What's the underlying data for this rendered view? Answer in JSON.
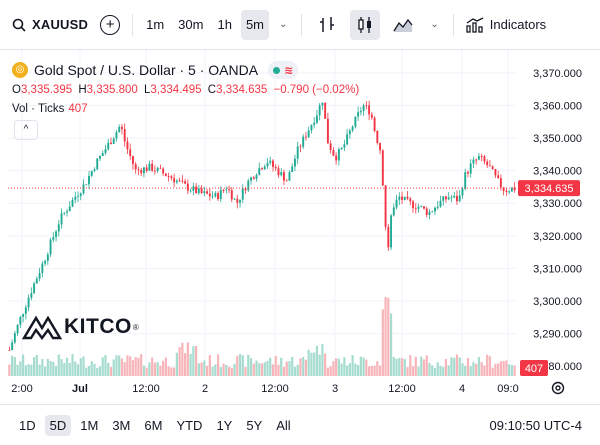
{
  "toolbar": {
    "symbol": "XAUUSD",
    "intervals": [
      "1m",
      "30m",
      "1h",
      "5m"
    ],
    "active_interval": "5m",
    "indicators_label": "Indicators"
  },
  "legend": {
    "title": "Gold Spot / U.S. Dollar · 5 · OANDA",
    "coin_label": "◎",
    "status_icon": "≋",
    "open_k": "O",
    "open": "3,335.395",
    "high_k": "H",
    "high": "3,335.800",
    "low_k": "L",
    "low": "3,334.495",
    "close_k": "C",
    "close": "3,334.635",
    "change": "−0.790 (−0.02%)",
    "volume_label": "Vol · Ticks",
    "volume_value": "407",
    "collapse_icon": "^"
  },
  "colors": {
    "up": "#22ab94",
    "down": "#f23645",
    "vol_up": "#a6dccf",
    "vol_down": "#f7b4b9",
    "grid": "#f0f3fa",
    "price_line": "#f23645"
  },
  "chart_data": {
    "type": "candlestick",
    "title": "Gold Spot / U.S. Dollar · 5 · OANDA",
    "ylim": [
      3277,
      3377
    ],
    "y_ticks": [
      3370,
      3360,
      3350,
      3340,
      3330,
      3320,
      3310,
      3300,
      3290,
      3280
    ],
    "y_tick_labels": [
      "3,370.000",
      "3,360.000",
      "3,350.000",
      "3,340.000",
      "3,330.000",
      "3,320.000",
      "3,310.000",
      "3,300.000",
      "3,290.000",
      "3,280.000"
    ],
    "x_tick_labels": [
      "2:00",
      "Jul",
      "12:00",
      "2",
      "12:00",
      "3",
      "12:00",
      "4",
      "09:0"
    ],
    "last_price": 3334.635,
    "last_price_label": "3,334.635",
    "last_volume_label": "407",
    "price_path": [
      [
        0.0,
        3285
      ],
      [
        0.02,
        3294
      ],
      [
        0.04,
        3302
      ],
      [
        0.07,
        3313
      ],
      [
        0.1,
        3325
      ],
      [
        0.13,
        3332
      ],
      [
        0.15,
        3336
      ],
      [
        0.17,
        3342
      ],
      [
        0.2,
        3349
      ],
      [
        0.22,
        3354
      ],
      [
        0.23,
        3348
      ],
      [
        0.25,
        3340
      ],
      [
        0.28,
        3341
      ],
      [
        0.32,
        3338
      ],
      [
        0.35,
        3335
      ],
      [
        0.38,
        3333
      ],
      [
        0.41,
        3332
      ],
      [
        0.43,
        3335
      ],
      [
        0.45,
        3330
      ],
      [
        0.47,
        3336
      ],
      [
        0.49,
        3340
      ],
      [
        0.51,
        3343
      ],
      [
        0.53,
        3340
      ],
      [
        0.55,
        3337
      ],
      [
        0.57,
        3346
      ],
      [
        0.59,
        3352
      ],
      [
        0.61,
        3358
      ],
      [
        0.62,
        3362
      ],
      [
        0.63,
        3349
      ],
      [
        0.645,
        3344
      ],
      [
        0.66,
        3347
      ],
      [
        0.68,
        3354
      ],
      [
        0.7,
        3360
      ],
      [
        0.715,
        3358
      ],
      [
        0.725,
        3351
      ],
      [
        0.735,
        3346
      ],
      [
        0.742,
        3330
      ],
      [
        0.748,
        3313
      ],
      [
        0.755,
        3326
      ],
      [
        0.77,
        3332
      ],
      [
        0.79,
        3330
      ],
      [
        0.81,
        3329
      ],
      [
        0.83,
        3327
      ],
      [
        0.85,
        3330
      ],
      [
        0.87,
        3332
      ],
      [
        0.89,
        3331
      ],
      [
        0.9,
        3338
      ],
      [
        0.915,
        3342
      ],
      [
        0.93,
        3344
      ],
      [
        0.95,
        3341
      ],
      [
        0.965,
        3337
      ],
      [
        0.98,
        3334
      ],
      [
        1.0,
        3334.6
      ]
    ]
  },
  "bottombar": {
    "ranges": [
      "1D",
      "5D",
      "1M",
      "3M",
      "6M",
      "YTD",
      "1Y",
      "5Y",
      "All"
    ],
    "active_range": "5D",
    "clock": "09:10:50 UTC-4"
  },
  "logo": {
    "text": "KITCO",
    "reg": "®"
  }
}
